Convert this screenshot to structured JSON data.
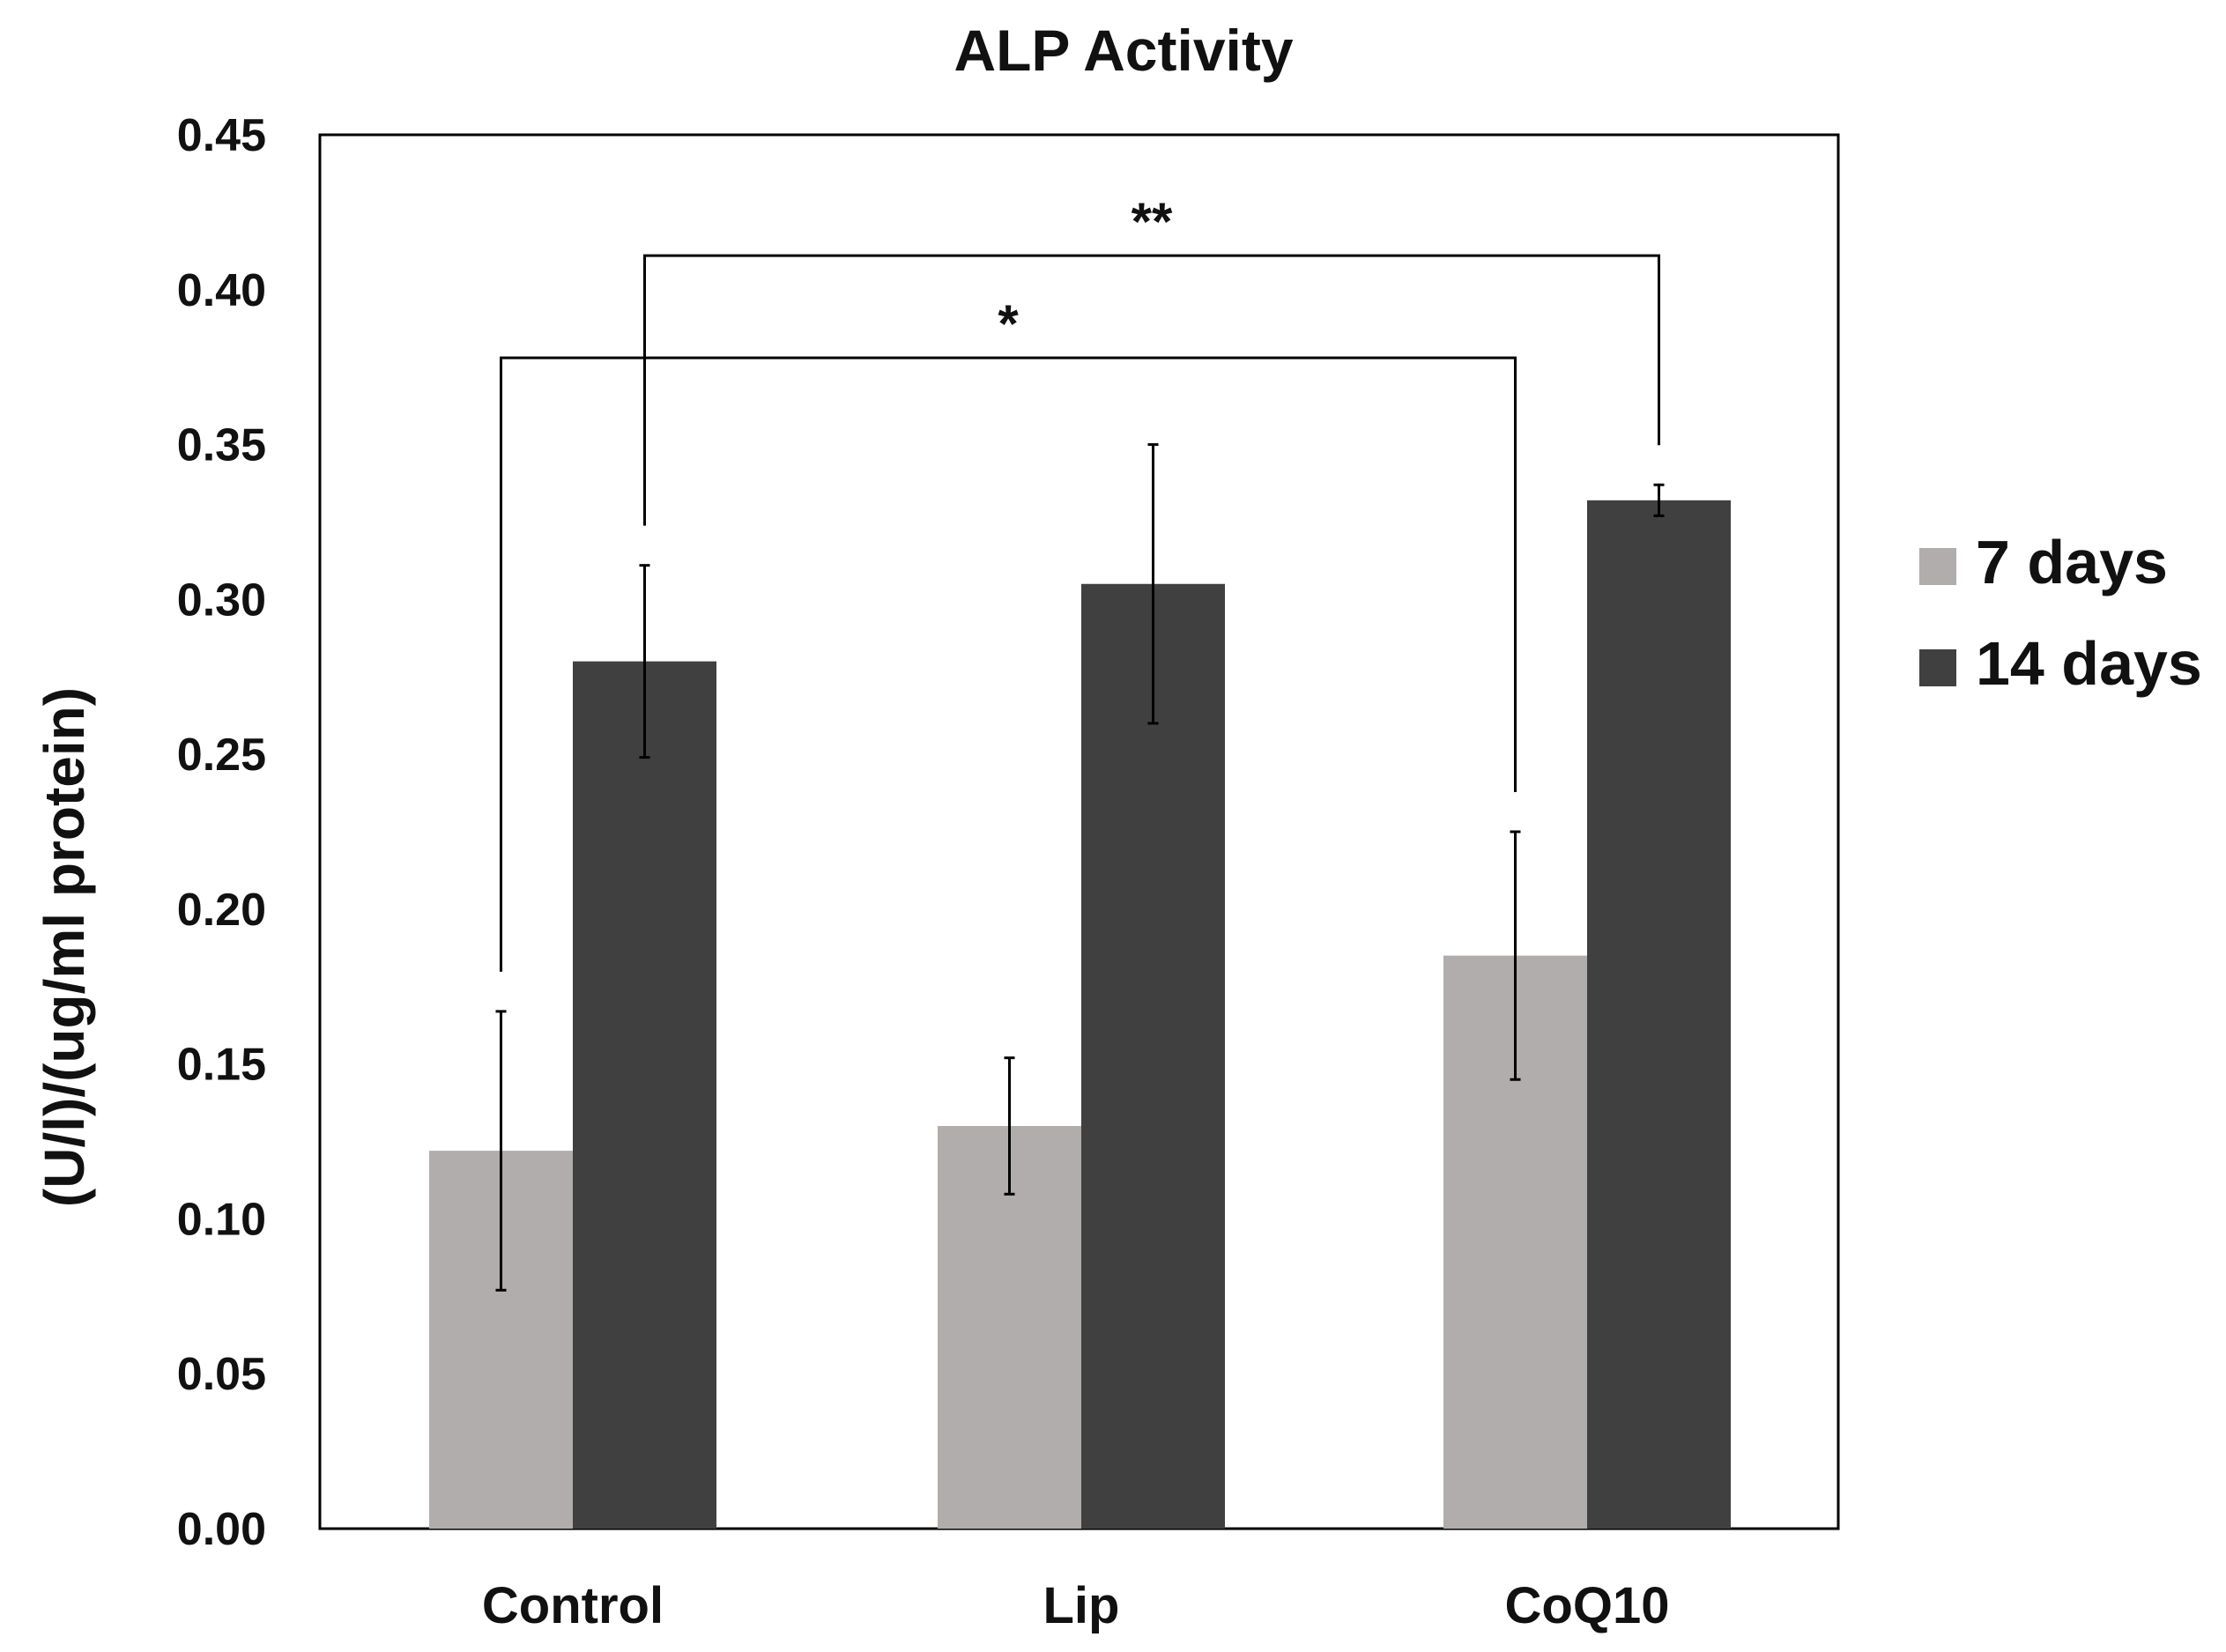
{
  "chart_data": {
    "type": "bar",
    "title": "ALP Activity",
    "xlabel": "",
    "ylabel": "(U/l)/(ug/ml protein)",
    "ylim": [
      0,
      0.45
    ],
    "yticks": [
      "0.00",
      "0.05",
      "0.10",
      "0.15",
      "0.20",
      "0.25",
      "0.30",
      "0.35",
      "0.40",
      "0.45"
    ],
    "categories": [
      "Control",
      "Lip",
      "CoQ10"
    ],
    "series": [
      {
        "name": "7 days",
        "color": "#b0adac",
        "values": [
          0.122,
          0.13,
          0.185
        ],
        "errors": [
          0.045,
          0.022,
          0.04
        ]
      },
      {
        "name": "14 days",
        "color": "#404040",
        "values": [
          0.28,
          0.305,
          0.332
        ],
        "errors": [
          0.031,
          0.045,
          0.005
        ]
      }
    ],
    "legend_position": "right",
    "significance": [
      {
        "label": "*",
        "from": {
          "category": 0,
          "series": 0
        },
        "to": {
          "category": 2,
          "series": 0
        },
        "level": 0.378
      },
      {
        "label": "**",
        "from": {
          "category": 0,
          "series": 1
        },
        "to": {
          "category": 2,
          "series": 1
        },
        "level": 0.411
      }
    ]
  }
}
